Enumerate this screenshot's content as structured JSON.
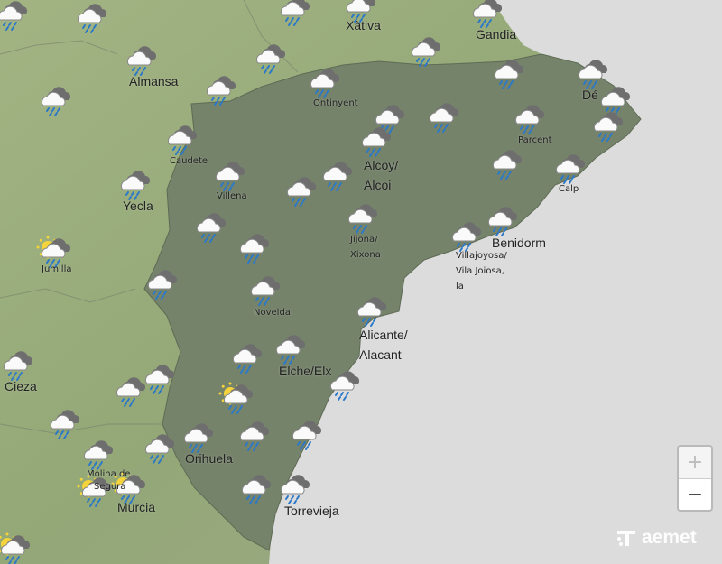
{
  "map": {
    "colors": {
      "sea": "#dcdcdc",
      "land": "#9bab7c",
      "province": "#75826a",
      "border": "#5e6b55"
    },
    "weather_icon_types": [
      "rain-cloud-icon",
      "sun-cloud-rain-icon"
    ],
    "places": {
      "xativa": "Xàtiva",
      "gandia": "Gandia",
      "almansa": "Almansa",
      "ontinyent": "Ontinyent",
      "denia": "Dé",
      "caudete": "Caudete",
      "parcent": "Parcent",
      "alcoy1": "Alcoy/",
      "alcoy2": "Alcoi",
      "calp": "Calp",
      "villena": "Villena",
      "yecla": "Yecla",
      "jijona1": "Jijona/",
      "jijona2": "Xixona",
      "benidorm": "Benidorm",
      "villajoyosa1": "Villajoyosa/",
      "villajoyosa2": "Vila Joiosa,",
      "villajoyosa3": "la",
      "jumilla": "Jumilla",
      "novelda": "Novelda",
      "alicante1": "Alicante/",
      "alicante2": "Alacant",
      "elche": "Elche/Elx",
      "cieza": "Cieza",
      "orihuela": "Orihuela",
      "molina": "Molina de",
      "molina2": "Segura",
      "murcia": "Murcia",
      "torrevieja": "Torrevieja"
    }
  },
  "controls": {
    "zoom_in": "+",
    "zoom_out": "−"
  },
  "logo": {
    "text": "aemet"
  }
}
